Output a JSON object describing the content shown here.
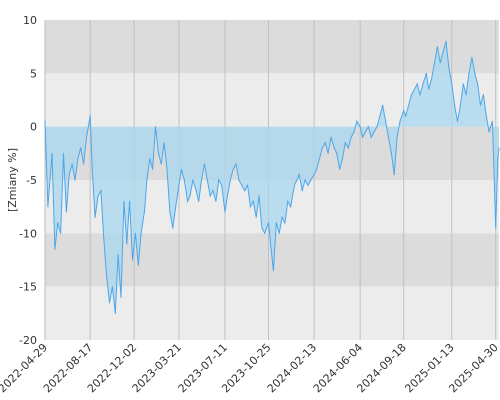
{
  "chart_data": {
    "type": "area",
    "ylabel": "[Zmiany %]",
    "ylim": [
      -20,
      10
    ],
    "xlim": [
      "2022-04-29",
      "2025-05-08"
    ],
    "grid": true,
    "y_ticks": [
      10,
      5,
      0,
      -5,
      -10,
      -15,
      -20
    ],
    "x_ticks": [
      "2022-04-29",
      "2022-08-17",
      "2022-12-02",
      "2023-03-21",
      "2023-07-11",
      "2023-10-25",
      "2024-02-13",
      "2024-06-04",
      "2024-09-18",
      "2025-01-13",
      "2025-04-30"
    ],
    "colors": {
      "line": "#4da6ea",
      "fill": "#a8d8ef",
      "grid_line": "#c0c0c0",
      "band_dark": "#dcdcdc",
      "band_light": "#ececec"
    },
    "series": [
      {
        "x": [
          "2022-04-29",
          "2022-05-06",
          "2022-05-16",
          "2022-05-23",
          "2022-05-30",
          "2022-06-06",
          "2022-06-13",
          "2022-06-20",
          "2022-06-27",
          "2022-07-04",
          "2022-07-11",
          "2022-07-18",
          "2022-07-25",
          "2022-08-01",
          "2022-08-08",
          "2022-08-17",
          "2022-08-22",
          "2022-08-29",
          "2022-09-05",
          "2022-09-12",
          "2022-09-19",
          "2022-09-26",
          "2022-10-03",
          "2022-10-10",
          "2022-10-17",
          "2022-10-24",
          "2022-10-31",
          "2022-11-07",
          "2022-11-14",
          "2022-11-21",
          "2022-11-28",
          "2022-12-05",
          "2022-12-12",
          "2022-12-19",
          "2022-12-27",
          "2023-01-02",
          "2023-01-09",
          "2023-01-16",
          "2023-01-23",
          "2023-01-30",
          "2023-02-06",
          "2023-02-13",
          "2023-02-20",
          "2023-02-27",
          "2023-03-06",
          "2023-03-13",
          "2023-03-21",
          "2023-03-27",
          "2023-04-03",
          "2023-04-11",
          "2023-04-17",
          "2023-04-24",
          "2023-05-02",
          "2023-05-08",
          "2023-05-15",
          "2023-05-22",
          "2023-05-29",
          "2023-06-05",
          "2023-06-12",
          "2023-06-19",
          "2023-06-26",
          "2023-07-03",
          "2023-07-11",
          "2023-07-17",
          "2023-07-24",
          "2023-07-31",
          "2023-08-07",
          "2023-08-14",
          "2023-08-21",
          "2023-08-28",
          "2023-09-04",
          "2023-09-11",
          "2023-09-18",
          "2023-09-25",
          "2023-10-02",
          "2023-10-09",
          "2023-10-16",
          "2023-10-25",
          "2023-10-30",
          "2023-11-06",
          "2023-11-13",
          "2023-11-20",
          "2023-11-27",
          "2023-12-04",
          "2023-12-11",
          "2023-12-18",
          "2023-12-27",
          "2024-01-02",
          "2024-01-08",
          "2024-01-15",
          "2024-01-22",
          "2024-01-29",
          "2024-02-05",
          "2024-02-13",
          "2024-02-19",
          "2024-02-26",
          "2024-03-04",
          "2024-03-11",
          "2024-03-18",
          "2024-03-25",
          "2024-04-02",
          "2024-04-08",
          "2024-04-15",
          "2024-04-22",
          "2024-04-29",
          "2024-05-06",
          "2024-05-13",
          "2024-05-20",
          "2024-05-27",
          "2024-06-04",
          "2024-06-10",
          "2024-06-17",
          "2024-06-24",
          "2024-07-01",
          "2024-07-08",
          "2024-07-15",
          "2024-07-22",
          "2024-07-29",
          "2024-08-05",
          "2024-08-12",
          "2024-08-19",
          "2024-08-26",
          "2024-09-02",
          "2024-09-09",
          "2024-09-18",
          "2024-09-23",
          "2024-09-30",
          "2024-10-07",
          "2024-10-14",
          "2024-10-21",
          "2024-10-28",
          "2024-11-04",
          "2024-11-12",
          "2024-11-18",
          "2024-11-25",
          "2024-12-02",
          "2024-12-09",
          "2024-12-16",
          "2024-12-23",
          "2024-12-30",
          "2025-01-06",
          "2025-01-13",
          "2025-01-20",
          "2025-01-27",
          "2025-02-03",
          "2025-02-10",
          "2025-02-17",
          "2025-02-24",
          "2025-03-03",
          "2025-03-10",
          "2025-03-17",
          "2025-03-24",
          "2025-03-31",
          "2025-04-07",
          "2025-04-14",
          "2025-04-22",
          "2025-04-30",
          "2025-05-05",
          "2025-05-08"
        ],
        "values": [
          0.5,
          -7.5,
          -2.5,
          -11.5,
          -9.0,
          -10.0,
          -2.5,
          -8.0,
          -4.5,
          -3.5,
          -5.0,
          -3.0,
          -2.0,
          -3.5,
          -1.0,
          1.0,
          -4.0,
          -8.5,
          -6.5,
          -6.0,
          -10.5,
          -14.0,
          -16.5,
          -15.0,
          -17.5,
          -12.0,
          -16.0,
          -7.0,
          -11.0,
          -7.0,
          -12.5,
          -10.0,
          -13.0,
          -10.0,
          -8.0,
          -5.0,
          -3.0,
          -4.0,
          0.0,
          -2.5,
          -3.5,
          -1.5,
          -4.0,
          -8.0,
          -9.5,
          -7.5,
          -5.5,
          -4.0,
          -5.0,
          -7.0,
          -6.5,
          -5.0,
          -6.0,
          -7.0,
          -5.0,
          -3.5,
          -5.0,
          -6.5,
          -6.0,
          -7.0,
          -5.0,
          -5.5,
          -8.0,
          -6.5,
          -5.0,
          -4.0,
          -3.5,
          -5.0,
          -5.5,
          -6.0,
          -5.5,
          -7.5,
          -7.0,
          -8.5,
          -6.5,
          -9.5,
          -10.0,
          -9.0,
          -11.0,
          -13.5,
          -9.0,
          -10.0,
          -8.5,
          -9.0,
          -7.0,
          -7.5,
          -5.5,
          -5.0,
          -4.5,
          -6.0,
          -5.0,
          -5.5,
          -5.0,
          -4.5,
          -4.0,
          -3.0,
          -2.0,
          -1.5,
          -2.5,
          -1.0,
          -2.0,
          -2.5,
          -4.0,
          -3.0,
          -1.5,
          -2.0,
          -1.0,
          -0.5,
          0.5,
          0.0,
          -1.0,
          -0.5,
          0.0,
          -1.0,
          -0.5,
          0.0,
          1.0,
          2.0,
          0.5,
          -1.0,
          -2.5,
          -4.5,
          -1.0,
          0.5,
          1.5,
          1.0,
          2.0,
          3.0,
          3.5,
          4.0,
          3.0,
          4.0,
          5.0,
          3.5,
          4.5,
          6.0,
          7.5,
          6.0,
          7.0,
          8.0,
          5.5,
          4.0,
          2.0,
          0.5,
          2.0,
          4.0,
          3.0,
          5.0,
          6.5,
          5.0,
          4.0,
          2.0,
          3.0,
          1.0,
          -0.5,
          0.5,
          -9.5,
          -3.0,
          -2.0
        ]
      }
    ]
  }
}
